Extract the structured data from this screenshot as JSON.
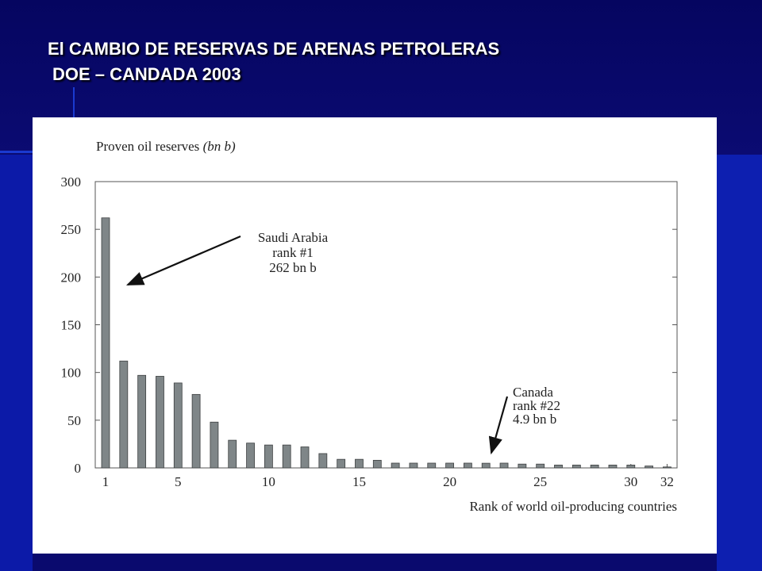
{
  "slide": {
    "title_line1": "El CAMBIO DE RESERVAS DE ARENAS PETROLERAS",
    "title_line2": "DOE – CANDADA 2003"
  },
  "chart_data": {
    "type": "bar",
    "title": "",
    "ylabel": "Proven oil reserves",
    "ylabel_unit": "(bn b)",
    "xlabel": "Rank of world oil-producing countries",
    "ylim": [
      0,
      300
    ],
    "yticks": [
      0,
      50,
      100,
      150,
      200,
      250,
      300
    ],
    "xticks": [
      1,
      5,
      10,
      15,
      20,
      25,
      30,
      32
    ],
    "x": [
      1,
      2,
      3,
      4,
      5,
      6,
      7,
      8,
      9,
      10,
      11,
      12,
      13,
      14,
      15,
      16,
      17,
      18,
      19,
      20,
      21,
      22,
      23,
      24,
      25,
      26,
      27,
      28,
      29,
      30,
      31,
      32
    ],
    "values": [
      262,
      112,
      97,
      96,
      89,
      77,
      48,
      29,
      26,
      24,
      24,
      22,
      15,
      9,
      9,
      8,
      5,
      5,
      5,
      5,
      5,
      4.9,
      5,
      4,
      4,
      3,
      3,
      3,
      3,
      3,
      2,
      1
    ],
    "bar_color": "#7f8688",
    "annotations": [
      {
        "lines": [
          "Saudi Arabia",
          "rank #1",
          "262 bn b"
        ],
        "target_rank": 1
      },
      {
        "lines": [
          "Canada",
          "rank #22",
          "4.9 bn b"
        ],
        "target_rank": 22
      }
    ],
    "grid": false,
    "legend": "none"
  }
}
